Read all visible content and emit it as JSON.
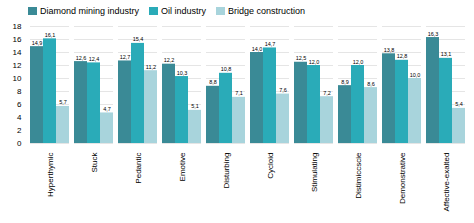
{
  "chart_data": {
    "type": "bar",
    "categories": [
      "Hyperthymic",
      "Stuck",
      "Pedantic",
      "Emotive",
      "Disturbing",
      "Cycloid",
      "Stimulating",
      "Distimiccscie",
      "Demonstrative",
      "Affective-exalted"
    ],
    "series": [
      {
        "name": "Diamond mining industry",
        "color": "#3A8A96",
        "values": [
          14.9,
          12.6,
          12.7,
          12.2,
          8.8,
          14.0,
          12.5,
          8.9,
          13.8,
          16.3
        ],
        "value_labels": [
          "14,9",
          "12,6",
          "12,7",
          "12,2",
          "8,8",
          "14,0",
          "12,5",
          "8,9",
          "13,8",
          "16,3"
        ]
      },
      {
        "name": "Oil industry",
        "color": "#2AABB8",
        "values": [
          16.1,
          12.4,
          15.4,
          10.3,
          10.8,
          14.7,
          12.0,
          12.0,
          12.8,
          13.1
        ],
        "value_labels": [
          "16,1",
          "12,4",
          "15,4",
          "10,3",
          "10,8",
          "14,7",
          "12,0",
          "12,0",
          "12,8",
          "13,1"
        ]
      },
      {
        "name": "Bridge construction",
        "color": "#A8D4DC",
        "values": [
          5.7,
          4.7,
          11.2,
          5.1,
          7.1,
          7.6,
          7.2,
          8.6,
          10.0,
          5.4
        ],
        "value_labels": [
          "5,7",
          "4,7",
          "11,2",
          "5,1",
          "7,1",
          "7,6",
          "7,2",
          "8,6",
          "10,0",
          "5,4"
        ]
      }
    ],
    "ylim": [
      0,
      18
    ],
    "yticks": [
      0,
      2,
      4,
      6,
      8,
      10,
      12,
      14,
      16,
      18
    ],
    "grid": true,
    "legend": "top",
    "data_labels": true
  }
}
